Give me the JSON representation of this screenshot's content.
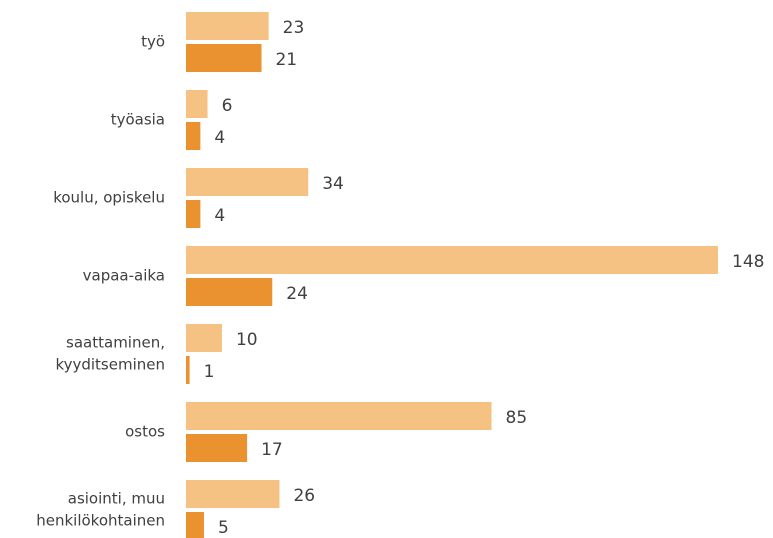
{
  "chart_data": {
    "type": "bar",
    "orientation": "horizontal",
    "categories": [
      [
        "työ"
      ],
      [
        "työasia"
      ],
      [
        "koulu, opiskelu"
      ],
      [
        "vapaa-aika"
      ],
      [
        "saattaminen,",
        "kyyditseminen"
      ],
      [
        "ostos"
      ],
      [
        "asiointi, muu",
        "henkilökohtainen"
      ]
    ],
    "series": [
      {
        "color": "#f6c283",
        "values": [
          23,
          6,
          34,
          148,
          10,
          85,
          26
        ]
      },
      {
        "color": "#ea9130",
        "values": [
          21,
          4,
          4,
          24,
          1,
          17,
          5
        ]
      }
    ]
  }
}
